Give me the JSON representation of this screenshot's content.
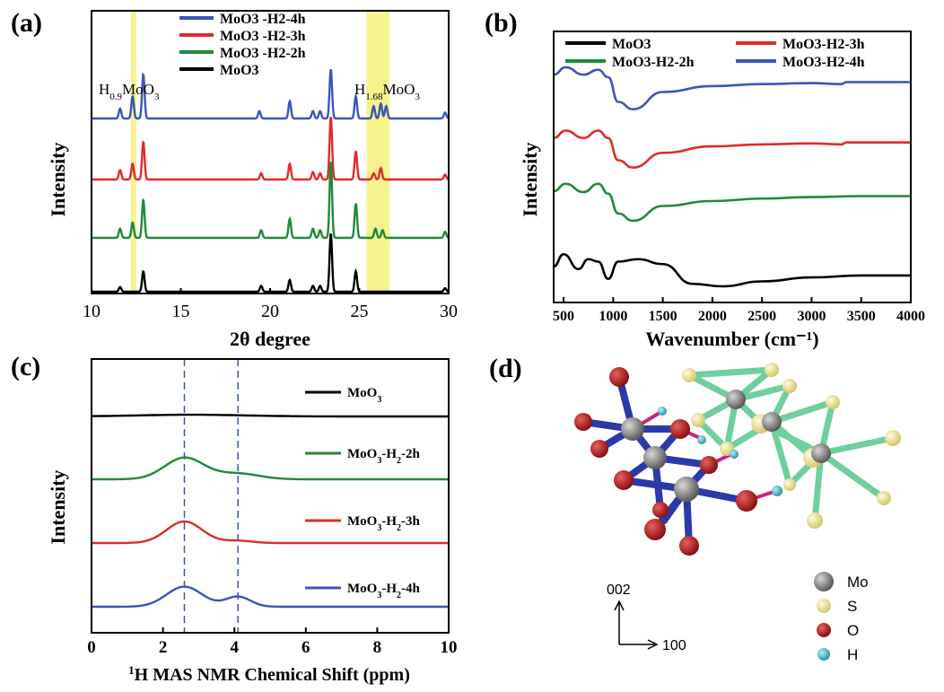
{
  "panels": {
    "a": {
      "label": "(a)"
    },
    "b": {
      "label": "(b)"
    },
    "c": {
      "label": "(c)"
    },
    "d": {
      "label": "(d)"
    }
  },
  "chart_data": [
    {
      "type": "line",
      "panel": "a",
      "xlabel": "2θ degree",
      "ylabel": "Intensity",
      "xlim": [
        10,
        30
      ],
      "xticks": [
        "10",
        "15",
        "20",
        "25",
        "30"
      ],
      "highlight_regions": [
        [
          12.2,
          12.5
        ],
        [
          25.4,
          26.7
        ]
      ],
      "annotations": [
        {
          "base": "H",
          "sub": "0.9",
          "tail": "MoO",
          "tailsub": "3",
          "x": 12.9
        },
        {
          "base": "H",
          "sub": "1.68",
          "tail": "MoO",
          "tailsub": "3",
          "x": 27.2
        }
      ],
      "legend": [
        "MoO3 -H2-4h",
        "MoO3 -H2-3h",
        "MoO3 -H2-2h",
        "MoO3"
      ],
      "series": [
        {
          "name": "MoO3 -H2-4h",
          "color": "#3a56b5",
          "peaks": [
            [
              11.6,
              0.2
            ],
            [
              12.3,
              0.45
            ],
            [
              12.9,
              0.9
            ],
            [
              19.4,
              0.15
            ],
            [
              21.1,
              0.35
            ],
            [
              22.4,
              0.15
            ],
            [
              22.8,
              0.15
            ],
            [
              23.4,
              1.0
            ],
            [
              24.8,
              0.45
            ],
            [
              25.8,
              0.25
            ],
            [
              26.2,
              0.3
            ],
            [
              26.5,
              0.25
            ],
            [
              29.8,
              0.12
            ]
          ]
        },
        {
          "name": "MoO3 -H2-3h",
          "color": "#e02a2a",
          "peaks": [
            [
              11.6,
              0.15
            ],
            [
              12.3,
              0.25
            ],
            [
              12.9,
              0.6
            ],
            [
              19.5,
              0.1
            ],
            [
              21.1,
              0.25
            ],
            [
              22.4,
              0.12
            ],
            [
              22.8,
              0.1
            ],
            [
              23.4,
              1.0
            ],
            [
              24.8,
              0.45
            ],
            [
              25.8,
              0.1
            ],
            [
              26.2,
              0.18
            ],
            [
              29.8,
              0.08
            ]
          ]
        },
        {
          "name": "MoO3 -H2-2h",
          "color": "#1e8a3c",
          "peaks": [
            [
              11.6,
              0.12
            ],
            [
              12.3,
              0.2
            ],
            [
              12.9,
              0.5
            ],
            [
              19.5,
              0.1
            ],
            [
              21.1,
              0.25
            ],
            [
              22.4,
              0.12
            ],
            [
              22.8,
              0.1
            ],
            [
              23.4,
              1.0
            ],
            [
              24.8,
              0.45
            ],
            [
              25.9,
              0.12
            ],
            [
              26.3,
              0.1
            ],
            [
              29.8,
              0.08
            ]
          ]
        },
        {
          "name": "MoO3",
          "color": "#000000",
          "peaks": [
            [
              11.6,
              0.08
            ],
            [
              12.9,
              0.35
            ],
            [
              19.5,
              0.1
            ],
            [
              21.1,
              0.2
            ],
            [
              22.4,
              0.1
            ],
            [
              22.8,
              0.1
            ],
            [
              23.4,
              1.0
            ],
            [
              24.8,
              0.35
            ],
            [
              29.8,
              0.06
            ]
          ]
        }
      ]
    },
    {
      "type": "line",
      "panel": "b",
      "xlabel": "Wavenumber (cm⁻¹)",
      "ylabel": "Intensity",
      "xlim": [
        400,
        4000
      ],
      "xticks": [
        "500",
        "1000",
        "1500",
        "2000",
        "2500",
        "3000",
        "3500",
        "4000"
      ],
      "legend": [
        {
          "name": "MoO3",
          "color": "#000000"
        },
        {
          "name": "MoO3-H2-3h",
          "color": "#e02a2a"
        },
        {
          "name": "MoO3-H2-2h",
          "color": "#1e8a3c"
        },
        {
          "name": "MoO3-H2-4h",
          "color": "#3a56b5"
        }
      ],
      "series": [
        {
          "name": "MoO3-H2-4h",
          "color": "#3a56b5",
          "x": [
            400,
            520,
            700,
            850,
            950,
            1050,
            1200,
            1500,
            2000,
            2500,
            3000,
            3300,
            3350,
            4000
          ],
          "y": [
            0.85,
            1.0,
            0.85,
            0.95,
            0.8,
            0.3,
            0.15,
            0.5,
            0.62,
            0.66,
            0.68,
            0.66,
            0.7,
            0.7
          ]
        },
        {
          "name": "MoO3-H2-3h",
          "color": "#e02a2a",
          "x": [
            400,
            520,
            700,
            850,
            950,
            1050,
            1200,
            1500,
            2000,
            2500,
            3000,
            3300,
            3350,
            4000
          ],
          "y": [
            0.75,
            0.9,
            0.75,
            0.9,
            0.75,
            0.3,
            0.15,
            0.45,
            0.58,
            0.62,
            0.64,
            0.62,
            0.66,
            0.66
          ]
        },
        {
          "name": "MoO3-H2-2h",
          "color": "#1e8a3c",
          "x": [
            400,
            520,
            700,
            850,
            950,
            1050,
            1200,
            1500,
            2000,
            2500,
            3000,
            3500,
            4000
          ],
          "y": [
            0.8,
            0.95,
            0.78,
            0.95,
            0.75,
            0.35,
            0.2,
            0.5,
            0.6,
            0.65,
            0.68,
            0.7,
            0.7
          ]
        },
        {
          "name": "MoO3",
          "color": "#000000",
          "x": [
            400,
            500,
            650,
            750,
            850,
            950,
            1050,
            1250,
            1500,
            1800,
            2100,
            2500,
            3000,
            3500,
            4000
          ],
          "y": [
            0.6,
            0.85,
            0.55,
            0.75,
            0.7,
            0.35,
            0.7,
            0.75,
            0.65,
            0.25,
            0.2,
            0.3,
            0.38,
            0.42,
            0.42
          ]
        }
      ]
    },
    {
      "type": "line",
      "panel": "c",
      "xlabel": "¹H MAS NMR Chemical Shift (ppm)",
      "ylabel": "Intensity",
      "xlim": [
        0,
        10
      ],
      "xticks": [
        "0",
        "2",
        "4",
        "6",
        "8",
        "10"
      ],
      "reference_lines": [
        2.6,
        4.1
      ],
      "series": [
        {
          "name": "MoO3",
          "color": "#000000",
          "label_base": "MoO",
          "label_sub": "3",
          "label_tail": "",
          "peaks": [
            [
              2.8,
              0.06,
              1.5
            ]
          ]
        },
        {
          "name": "MoO3-H2-2h",
          "color": "#1e8a3c",
          "label_base": "MoO",
          "label_sub": "3",
          "label_tail": "-H",
          "label_tailsub": "2",
          "label_end": "-2h",
          "peaks": [
            [
              2.6,
              0.75,
              0.55
            ],
            [
              4.1,
              0.2,
              0.6
            ]
          ]
        },
        {
          "name": "MoO3-H2-3h",
          "color": "#e02a2a",
          "label_base": "MoO",
          "label_sub": "3",
          "label_tail": "-H",
          "label_tailsub": "2",
          "label_end": "-3h",
          "peaks": [
            [
              2.6,
              0.75,
              0.5
            ],
            [
              4.1,
              0.08,
              0.4
            ]
          ]
        },
        {
          "name": "MoO3-H2-4h",
          "color": "#3a56b5",
          "label_base": "MoO",
          "label_sub": "3",
          "label_tail": "-H",
          "label_tailsub": "2",
          "label_end": "-4h",
          "peaks": [
            [
              2.6,
              0.7,
              0.5
            ],
            [
              4.1,
              0.35,
              0.35
            ]
          ]
        }
      ]
    }
  ],
  "structure": {
    "axis_up": "002",
    "axis_right": "100",
    "legend": [
      {
        "name": "Mo",
        "color": "#808080"
      },
      {
        "name": "S",
        "color": "#f0e68c"
      },
      {
        "name": "O",
        "color": "#b22222"
      },
      {
        "name": "H",
        "color": "#40b8c8"
      }
    ]
  }
}
